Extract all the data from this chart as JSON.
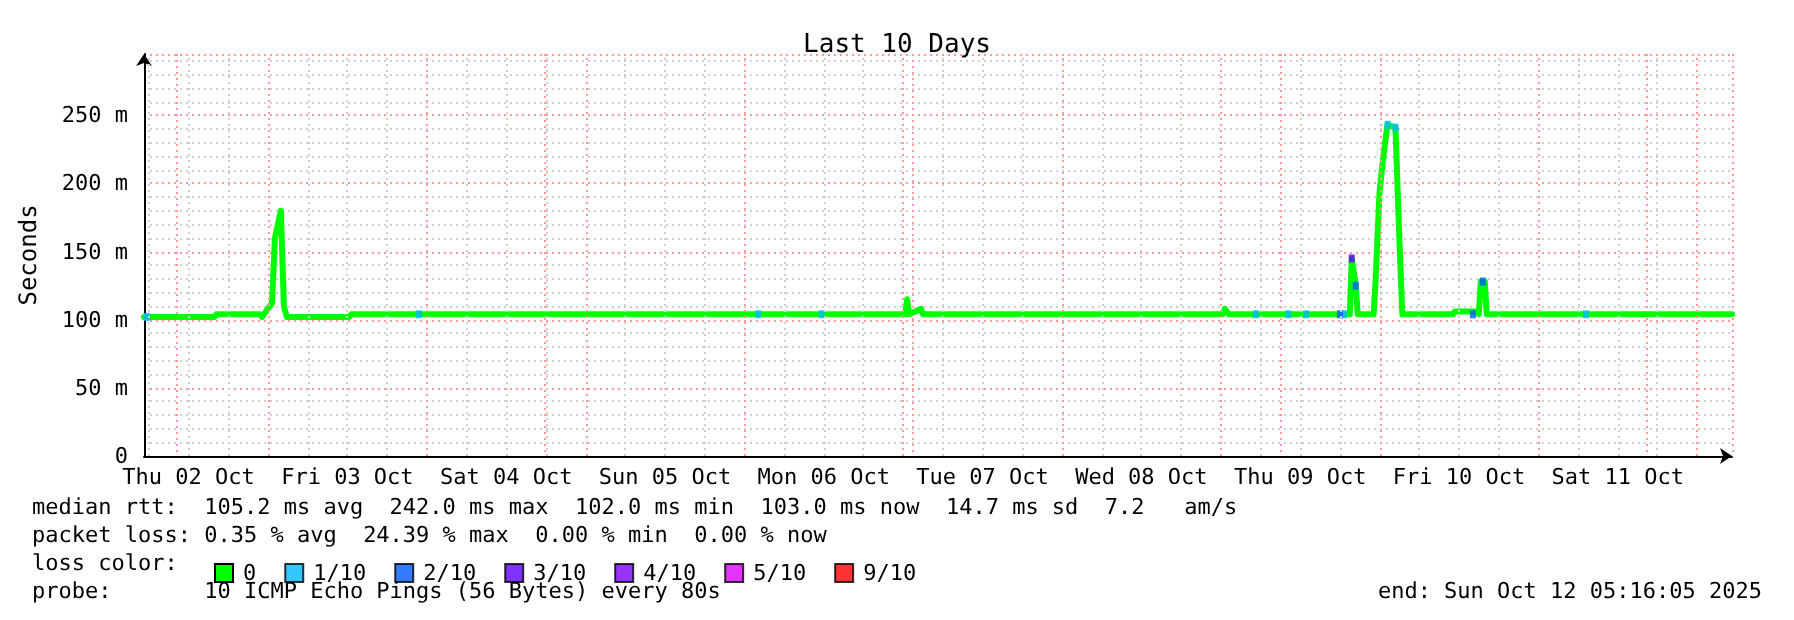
{
  "chart_data": {
    "type": "line",
    "title": "Last 10 Days",
    "ylabel": "Seconds",
    "legend_title": "loss color:",
    "legend": "bottom",
    "grid": true,
    "marker": "none",
    "line_style": "solid",
    "xlim": [
      "2025-10-02T05:16",
      "2025-10-12T05:16"
    ],
    "xticks": [
      {
        "value": "2025-10-02T12:00",
        "label": "Thu 02 Oct"
      },
      {
        "value": "2025-10-03T12:00",
        "label": "Fri 03 Oct"
      },
      {
        "value": "2025-10-04T12:00",
        "label": "Sat 04 Oct"
      },
      {
        "value": "2025-10-05T12:00",
        "label": "Sun 05 Oct"
      },
      {
        "value": "2025-10-06T12:00",
        "label": "Mon 06 Oct"
      },
      {
        "value": "2025-10-07T12:00",
        "label": "Tue 07 Oct"
      },
      {
        "value": "2025-10-08T12:00",
        "label": "Wed 08 Oct"
      },
      {
        "value": "2025-10-09T12:00",
        "label": "Thu 09 Oct"
      },
      {
        "value": "2025-10-10T12:00",
        "label": "Fri 10 Oct"
      },
      {
        "value": "2025-10-11T12:00",
        "label": "Sat 11 Oct"
      }
    ],
    "ylim": [
      0,
      295
    ],
    "yticks": [
      {
        "value": 0,
        "label": "0"
      },
      {
        "value": 50,
        "label": "50 m"
      },
      {
        "value": 100,
        "label": "100 m"
      },
      {
        "value": 150,
        "label": "150 m"
      },
      {
        "value": 200,
        "label": "200 m"
      },
      {
        "value": 250,
        "label": "250 m"
      }
    ],
    "annotations": [
      "median rtt:  105.2 ms avg  242.0 ms max  102.0 ms min  103.0 ms now  14.7 ms sd  7.2   am/s",
      "packet loss: 0.35 % avg  24.39 % max  0.00 % min  0.00 % now",
      "probe:       10 ICMP Echo Pings (56 Bytes) every 80s",
      "end: Sun Oct 12 05:16:05 2025"
    ],
    "series": [
      {
        "name": "0",
        "color": "#00ff00",
        "x": [
          "2025-10-02T05:16",
          "2025-10-02T15:54",
          "2025-10-02T16:12",
          "2025-10-02T22:48",
          "2025-10-02T23:06",
          "2025-10-03T00:36",
          "2025-10-03T01:03",
          "2025-10-03T01:57",
          "2025-10-03T02:24",
          "2025-10-03T02:51",
          "2025-10-03T12:18",
          "2025-10-03T12:36",
          "2025-10-07T00:18",
          "2025-10-07T00:36",
          "2025-10-07T00:54",
          "2025-10-07T02:42",
          "2025-10-07T03:00",
          "2025-10-09T00:18",
          "2025-10-09T00:36",
          "2025-10-09T01:12",
          "2025-10-09T19:30",
          "2025-10-09T19:48",
          "2025-10-09T20:24",
          "2025-10-09T20:42",
          "2025-10-09T23:06",
          "2025-10-09T23:24",
          "2025-10-10T00:00",
          "2025-10-10T00:36",
          "2025-10-10T01:12",
          "2025-10-10T02:24",
          "2025-10-10T03:00",
          "2025-10-10T03:27",
          "2025-10-10T11:06",
          "2025-10-10T11:24",
          "2025-10-10T14:24",
          "2025-10-10T15:00",
          "2025-10-10T15:18",
          "2025-10-10T15:54",
          "2025-10-10T16:12",
          "2025-10-12T05:16"
        ],
        "values": [
          102,
          102,
          104,
          104,
          102,
          112,
          160,
          180,
          110,
          102,
          102,
          104,
          104,
          115,
          104,
          108,
          104,
          104,
          108,
          104,
          104,
          145,
          125,
          104,
          104,
          129,
          194,
          221,
          243,
          241,
          158,
          104,
          104,
          106,
          106,
          104,
          128,
          128,
          104,
          104
        ]
      },
      {
        "name": "1/10",
        "type": "scatter",
        "marker": "square",
        "color": "#00b8ff",
        "x": [
          "2025-10-02T05:40",
          "2025-10-03T22:48",
          "2025-10-06T02:06",
          "2025-10-06T11:42",
          "2025-10-09T05:18",
          "2025-10-09T10:12",
          "2025-10-09T12:54",
          "2025-10-09T18:36",
          "2025-10-10T01:12",
          "2025-10-10T02:24",
          "2025-10-11T07:12"
        ],
        "values": [
          102,
          104,
          104,
          104,
          104,
          104,
          104,
          104,
          243,
          241,
          104
        ]
      },
      {
        "name": "2/10",
        "type": "scatter",
        "marker": "square",
        "color": "#0059ff",
        "x": [
          "2025-10-09T18:00",
          "2025-10-09T20:24",
          "2025-10-10T14:06",
          "2025-10-10T15:36"
        ],
        "values": [
          104,
          125,
          104,
          128
        ]
      },
      {
        "name": "3/10",
        "type": "scatter",
        "marker": "square",
        "color": "#5e00ff",
        "x": [
          "2025-10-09T19:48"
        ],
        "values": [
          145
        ]
      },
      {
        "name": "4/10",
        "type": "scatter",
        "marker": "square",
        "color": "#7e00ff"
      },
      {
        "name": "5/10",
        "type": "scatter",
        "marker": "square",
        "color": "#dd00ff"
      },
      {
        "name": "9/10",
        "type": "scatter",
        "marker": "square",
        "color": "#ff0000"
      }
    ]
  }
}
